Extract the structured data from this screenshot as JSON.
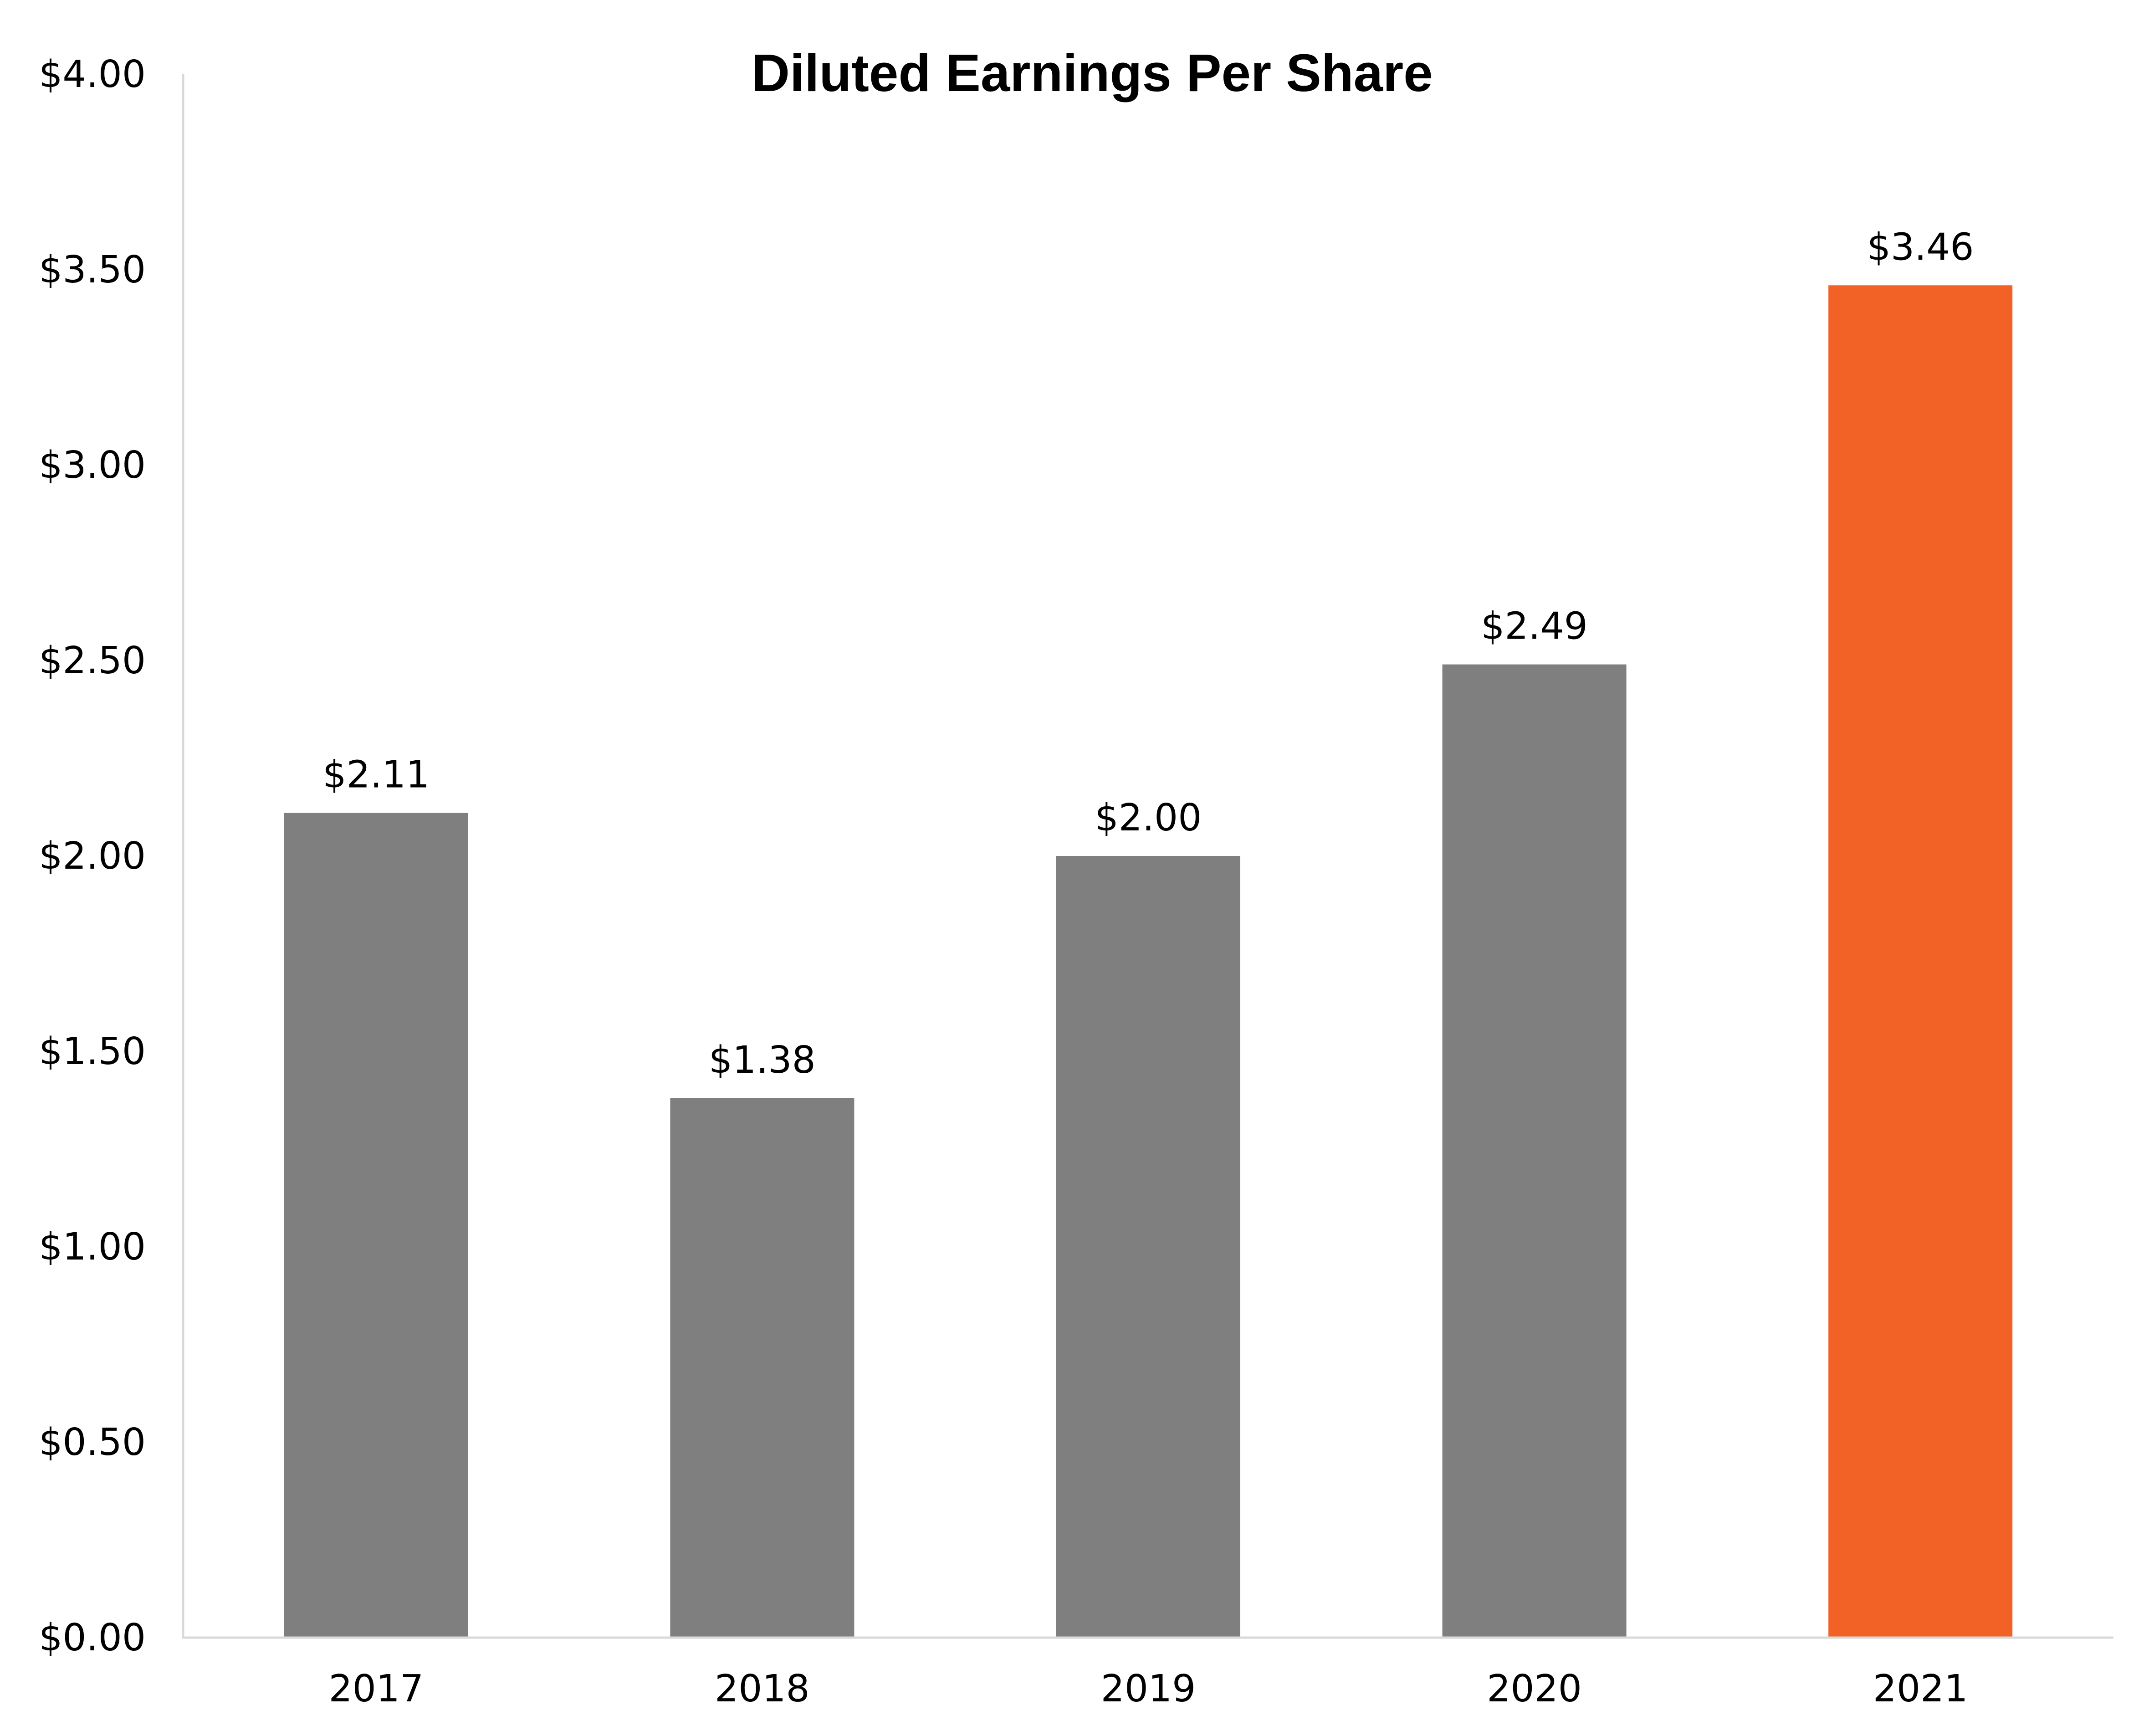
{
  "chart_data": {
    "type": "bar",
    "title": "Diluted Earnings Per Share",
    "categories": [
      "2017",
      "2018",
      "2019",
      "2020",
      "2021"
    ],
    "values": [
      2.11,
      1.38,
      2.0,
      2.49,
      3.46
    ],
    "data_labels": [
      "$2.11",
      "$1.38",
      "$2.00",
      "$2.49",
      "$3.46"
    ],
    "y_ticks": [
      "$0.00",
      "$0.50",
      "$1.00",
      "$1.50",
      "$2.00",
      "$2.50",
      "$3.00",
      "$3.50",
      "$4.00"
    ],
    "y_tick_values": [
      0,
      0.5,
      1,
      1.5,
      2,
      2.5,
      3,
      3.5,
      4
    ],
    "ylim": [
      0,
      4
    ],
    "xlabel": "",
    "ylabel": "",
    "grid": false,
    "legend": "none",
    "colors": {
      "bar": "#7f7f7f",
      "highlight_bar": "#f26125",
      "axis": "#d9d9d9"
    },
    "highlight_category": "2021"
  }
}
